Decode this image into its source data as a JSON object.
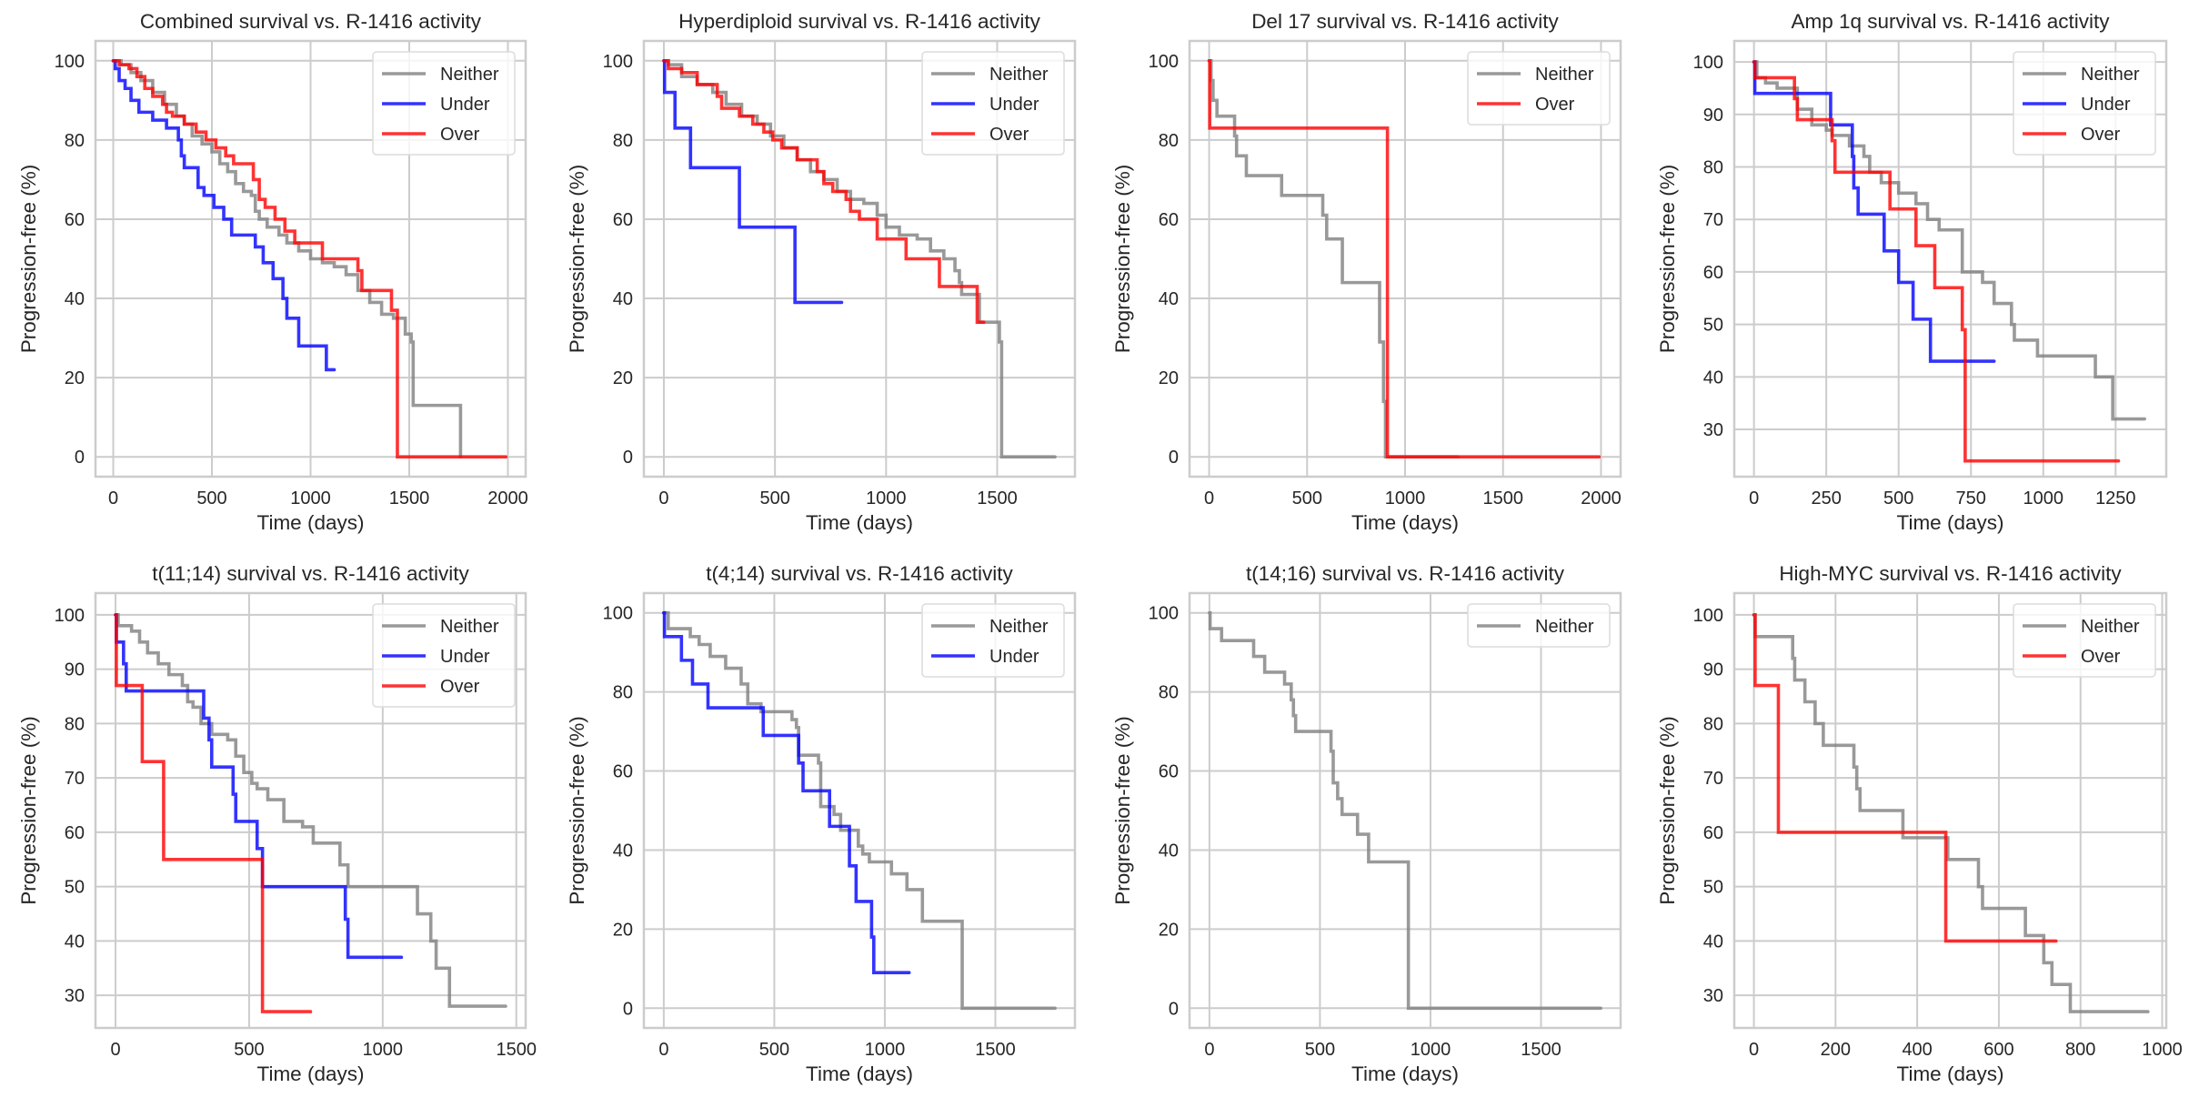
{
  "chart_data": [
    {
      "type": "line",
      "step": true,
      "title": "Combined survival vs. R-1416 activity",
      "xlabel": "Time (days)",
      "ylabel": "Progression-free (%)",
      "xlim": [
        -90,
        2090
      ],
      "ylim": [
        -5,
        105
      ],
      "xticks": [
        0,
        500,
        1000,
        1500,
        2000
      ],
      "yticks": [
        0,
        20,
        40,
        60,
        80,
        100
      ],
      "grid": true,
      "legend": {
        "placement": "top-right",
        "entries": [
          "Neither",
          "Under",
          "Over"
        ]
      },
      "series": [
        {
          "name": "Neither",
          "color": "#808080",
          "x": [
            0,
            40,
            90,
            140,
            200,
            260,
            320,
            360,
            400,
            450,
            500,
            540,
            580,
            620,
            660,
            700,
            720,
            740,
            780,
            840,
            880,
            940,
            1000,
            1060,
            1120,
            1180,
            1240,
            1300,
            1360,
            1420,
            1480,
            1510,
            1520,
            1750,
            1760
          ],
          "y": [
            100,
            99,
            97,
            95,
            92,
            89,
            86,
            84,
            81,
            79,
            77,
            74,
            72,
            69,
            67,
            66,
            62,
            60,
            58,
            56,
            54,
            52,
            50,
            49,
            48,
            46,
            42,
            39,
            36,
            35,
            31,
            29,
            13,
            13,
            0
          ]
        },
        {
          "name": "Under",
          "color": "#0000ff",
          "x": [
            0,
            10,
            30,
            60,
            90,
            130,
            200,
            270,
            330,
            345,
            360,
            430,
            460,
            510,
            560,
            600,
            640,
            720,
            760,
            810,
            860,
            880,
            940,
            1080,
            1120
          ],
          "y": [
            100,
            98,
            95,
            93,
            90,
            87,
            85,
            83,
            80,
            76,
            73,
            68,
            66,
            63,
            60,
            56,
            56,
            53,
            49,
            45,
            40,
            35,
            28,
            22,
            22
          ]
        },
        {
          "name": "Over",
          "color": "#ff0000",
          "x": [
            0,
            30,
            80,
            120,
            160,
            200,
            250,
            270,
            300,
            360,
            420,
            470,
            520,
            570,
            610,
            660,
            710,
            740,
            770,
            820,
            870,
            920,
            1060,
            1240,
            1260,
            1410,
            1440,
            1990
          ],
          "y": [
            100,
            99,
            98,
            96,
            93,
            91,
            89,
            87,
            86,
            84,
            82,
            80,
            78,
            76,
            74,
            74,
            70,
            65,
            63,
            60,
            57,
            54,
            50,
            47,
            42,
            37,
            0,
            0
          ]
        }
      ]
    },
    {
      "type": "line",
      "step": true,
      "title": "Hyperdiploid survival vs. R-1416 activity",
      "xlabel": "Time (days)",
      "ylabel": "Progression-free (%)",
      "xlim": [
        -90,
        1850
      ],
      "ylim": [
        -5,
        105
      ],
      "xticks": [
        0,
        500,
        1000,
        1500
      ],
      "yticks": [
        0,
        20,
        40,
        60,
        80,
        100
      ],
      "grid": true,
      "legend": {
        "placement": "top-right",
        "entries": [
          "Neither",
          "Under",
          "Over"
        ]
      },
      "series": [
        {
          "name": "Neither",
          "color": "#808080",
          "x": [
            0,
            20,
            80,
            150,
            220,
            280,
            350,
            420,
            480,
            540,
            600,
            660,
            720,
            780,
            840,
            900,
            960,
            1000,
            1060,
            1140,
            1200,
            1260,
            1310,
            1330,
            1340,
            1420,
            1510,
            1520,
            1760
          ],
          "y": [
            100,
            99,
            96,
            94,
            92,
            89,
            86,
            84,
            81,
            78,
            75,
            72,
            70,
            67,
            65,
            64,
            61,
            58,
            56,
            55,
            52,
            50,
            47,
            44,
            41,
            34,
            29,
            0,
            0
          ]
        },
        {
          "name": "Under",
          "color": "#0000ff",
          "x": [
            0,
            3,
            50,
            120,
            340,
            590,
            800
          ],
          "y": [
            100,
            92,
            83,
            73,
            58,
            39,
            39
          ]
        },
        {
          "name": "Over",
          "color": "#ff0000",
          "x": [
            0,
            20,
            80,
            150,
            240,
            260,
            340,
            400,
            450,
            490,
            530,
            600,
            690,
            720,
            760,
            820,
            840,
            880,
            960,
            1090,
            1240,
            1410,
            1440
          ],
          "y": [
            100,
            98,
            97,
            94,
            91,
            88,
            86,
            84,
            82,
            80,
            78,
            75,
            72,
            69,
            67,
            65,
            62,
            60,
            55,
            50,
            43,
            34,
            34
          ]
        }
      ]
    },
    {
      "type": "line",
      "step": true,
      "title": "Del 17 survival vs. R-1416 activity",
      "xlabel": "Time (days)",
      "ylabel": "Progression-free (%)",
      "xlim": [
        -100,
        2100
      ],
      "ylim": [
        -5,
        105
      ],
      "xticks": [
        0,
        500,
        1000,
        1500,
        2000
      ],
      "yticks": [
        0,
        20,
        40,
        60,
        80,
        100
      ],
      "grid": true,
      "legend": {
        "placement": "top-right",
        "entries": [
          "Neither",
          "Over"
        ]
      },
      "series": [
        {
          "name": "Neither",
          "color": "#808080",
          "x": [
            0,
            10,
            20,
            40,
            130,
            140,
            190,
            370,
            580,
            600,
            680,
            870,
            890,
            900,
            1270
          ],
          "y": [
            100,
            95,
            90,
            86,
            81,
            76,
            71,
            66,
            61,
            55,
            44,
            29,
            14,
            0,
            0
          ]
        },
        {
          "name": "Over",
          "color": "#ff0000",
          "x": [
            0,
            3,
            910,
            1990
          ],
          "y": [
            100,
            83,
            0,
            0
          ]
        }
      ]
    },
    {
      "type": "line",
      "step": true,
      "title": "Amp 1q survival vs. R-1416 activity",
      "xlabel": "Time (days)",
      "ylabel": "Progression-free (%)",
      "xlim": [
        -68,
        1425
      ],
      "ylim": [
        21,
        104
      ],
      "xticks": [
        0,
        250,
        500,
        750,
        1000,
        1250
      ],
      "yticks": [
        30,
        40,
        50,
        60,
        70,
        80,
        90,
        100
      ],
      "grid": true,
      "legend": {
        "placement": "top-right",
        "entries": [
          "Neither",
          "Under",
          "Over"
        ]
      },
      "series": [
        {
          "name": "Neither",
          "color": "#808080",
          "x": [
            0,
            10,
            40,
            80,
            150,
            200,
            250,
            270,
            330,
            380,
            400,
            440,
            500,
            560,
            600,
            640,
            720,
            790,
            830,
            890,
            900,
            980,
            1180,
            1240,
            1350
          ],
          "y": [
            100,
            97,
            96,
            95,
            91,
            88,
            87,
            86,
            84,
            82,
            79,
            77,
            75,
            73,
            70,
            68,
            60,
            58,
            54,
            50,
            47,
            44,
            40,
            32,
            32
          ]
        },
        {
          "name": "Under",
          "color": "#0000ff",
          "x": [
            0,
            3,
            265,
            340,
            345,
            360,
            450,
            500,
            550,
            610,
            830
          ],
          "y": [
            100,
            94,
            88,
            82,
            76,
            71,
            64,
            58,
            51,
            43,
            43
          ]
        },
        {
          "name": "Over",
          "color": "#ff0000",
          "x": [
            0,
            3,
            140,
            150,
            270,
            280,
            470,
            560,
            625,
            720,
            730,
            1260
          ],
          "y": [
            100,
            97,
            93,
            89,
            85,
            79,
            72,
            65,
            57,
            49,
            24,
            24
          ]
        }
      ]
    },
    {
      "type": "line",
      "step": true,
      "title": "t(11;14) survival vs. R-1416 activity",
      "xlabel": "Time (days)",
      "ylabel": "Progression-free (%)",
      "xlim": [
        -75,
        1535
      ],
      "ylim": [
        24,
        104
      ],
      "xticks": [
        0,
        500,
        1000,
        1500
      ],
      "yticks": [
        30,
        40,
        50,
        60,
        70,
        80,
        90,
        100
      ],
      "grid": true,
      "legend": {
        "placement": "top-right",
        "entries": [
          "Neither",
          "Under",
          "Over"
        ]
      },
      "series": [
        {
          "name": "Neither",
          "color": "#808080",
          "x": [
            0,
            10,
            60,
            90,
            120,
            160,
            200,
            250,
            270,
            290,
            320,
            360,
            420,
            450,
            480,
            510,
            530,
            570,
            630,
            700,
            740,
            840,
            870,
            1130,
            1180,
            1200,
            1250,
            1460
          ],
          "y": [
            100,
            98,
            97,
            95,
            93,
            91,
            89,
            87,
            84,
            83,
            80,
            78,
            77,
            74,
            71,
            69,
            68,
            66,
            62,
            61,
            58,
            54,
            50,
            45,
            40,
            35,
            28,
            28
          ]
        },
        {
          "name": "Under",
          "color": "#0000ff",
          "x": [
            0,
            3,
            30,
            40,
            330,
            350,
            360,
            440,
            450,
            530,
            550,
            860,
            870,
            1070
          ],
          "y": [
            100,
            95,
            91,
            86,
            81,
            77,
            72,
            67,
            62,
            57,
            50,
            44,
            37,
            37
          ]
        },
        {
          "name": "Over",
          "color": "#ff0000",
          "x": [
            0,
            3,
            100,
            180,
            550,
            730
          ],
          "y": [
            100,
            87,
            73,
            55,
            27,
            27
          ]
        }
      ]
    },
    {
      "type": "line",
      "step": true,
      "title": "t(4;14) survival vs. R-1416 activity",
      "xlabel": "Time (days)",
      "ylabel": "Progression-free (%)",
      "xlim": [
        -90,
        1860
      ],
      "ylim": [
        -5,
        105
      ],
      "xticks": [
        0,
        500,
        1000,
        1500
      ],
      "yticks": [
        0,
        20,
        40,
        60,
        80,
        100
      ],
      "grid": true,
      "legend": {
        "placement": "top-right",
        "entries": [
          "Neither",
          "Under"
        ]
      },
      "series": [
        {
          "name": "Neither",
          "color": "#808080",
          "x": [
            0,
            20,
            120,
            160,
            210,
            280,
            350,
            380,
            440,
            580,
            600,
            610,
            700,
            710,
            770,
            800,
            880,
            900,
            930,
            1030,
            1100,
            1170,
            1350,
            1770
          ],
          "y": [
            100,
            96,
            94,
            92,
            89,
            86,
            82,
            77,
            75,
            73,
            71,
            64,
            62,
            51,
            49,
            45,
            41,
            39,
            37,
            34,
            30,
            22,
            0,
            0
          ]
        },
        {
          "name": "Under",
          "color": "#0000ff",
          "x": [
            0,
            3,
            80,
            130,
            200,
            450,
            610,
            630,
            750,
            840,
            870,
            940,
            950,
            1110
          ],
          "y": [
            100,
            94,
            88,
            82,
            76,
            69,
            62,
            55,
            46,
            36,
            27,
            18,
            9,
            9
          ]
        }
      ]
    },
    {
      "type": "line",
      "step": true,
      "title": "t(14;16) survival vs. R-1416 activity",
      "xlabel": "Time (days)",
      "ylabel": "Progression-free (%)",
      "xlim": [
        -90,
        1860
      ],
      "ylim": [
        -5,
        105
      ],
      "xticks": [
        0,
        500,
        1000,
        1500
      ],
      "yticks": [
        0,
        20,
        40,
        60,
        80,
        100
      ],
      "grid": true,
      "legend": {
        "placement": "top-right",
        "entries": [
          "Neither"
        ]
      },
      "series": [
        {
          "name": "Neither",
          "color": "#808080",
          "x": [
            0,
            3,
            55,
            200,
            250,
            340,
            370,
            380,
            390,
            550,
            560,
            580,
            600,
            670,
            720,
            900,
            1770
          ],
          "y": [
            100,
            96,
            93,
            89,
            85,
            82,
            78,
            74,
            70,
            65,
            57,
            53,
            49,
            44,
            37,
            0,
            0
          ]
        }
      ]
    },
    {
      "type": "line",
      "step": true,
      "title": "High-MYC survival vs. R-1416 activity",
      "xlabel": "Time (days)",
      "ylabel": "Progression-free (%)",
      "xlim": [
        -48,
        1010
      ],
      "ylim": [
        24,
        104
      ],
      "xticks": [
        0,
        200,
        400,
        600,
        800,
        1000
      ],
      "yticks": [
        30,
        40,
        50,
        60,
        70,
        80,
        90,
        100
      ],
      "grid": true,
      "legend": {
        "placement": "top-right",
        "entries": [
          "Neither",
          "Over"
        ]
      },
      "series": [
        {
          "name": "Neither",
          "color": "#808080",
          "x": [
            0,
            3,
            95,
            100,
            125,
            150,
            170,
            245,
            252,
            260,
            365,
            475,
            550,
            560,
            665,
            710,
            730,
            775,
            965
          ],
          "y": [
            100,
            96,
            92,
            88,
            84,
            80,
            76,
            72,
            68,
            64,
            59,
            55,
            50,
            46,
            41,
            36,
            32,
            27,
            27
          ]
        },
        {
          "name": "Over",
          "color": "#ff0000",
          "x": [
            0,
            3,
            60,
            470,
            740
          ],
          "y": [
            100,
            87,
            60,
            40,
            40
          ]
        }
      ]
    }
  ]
}
